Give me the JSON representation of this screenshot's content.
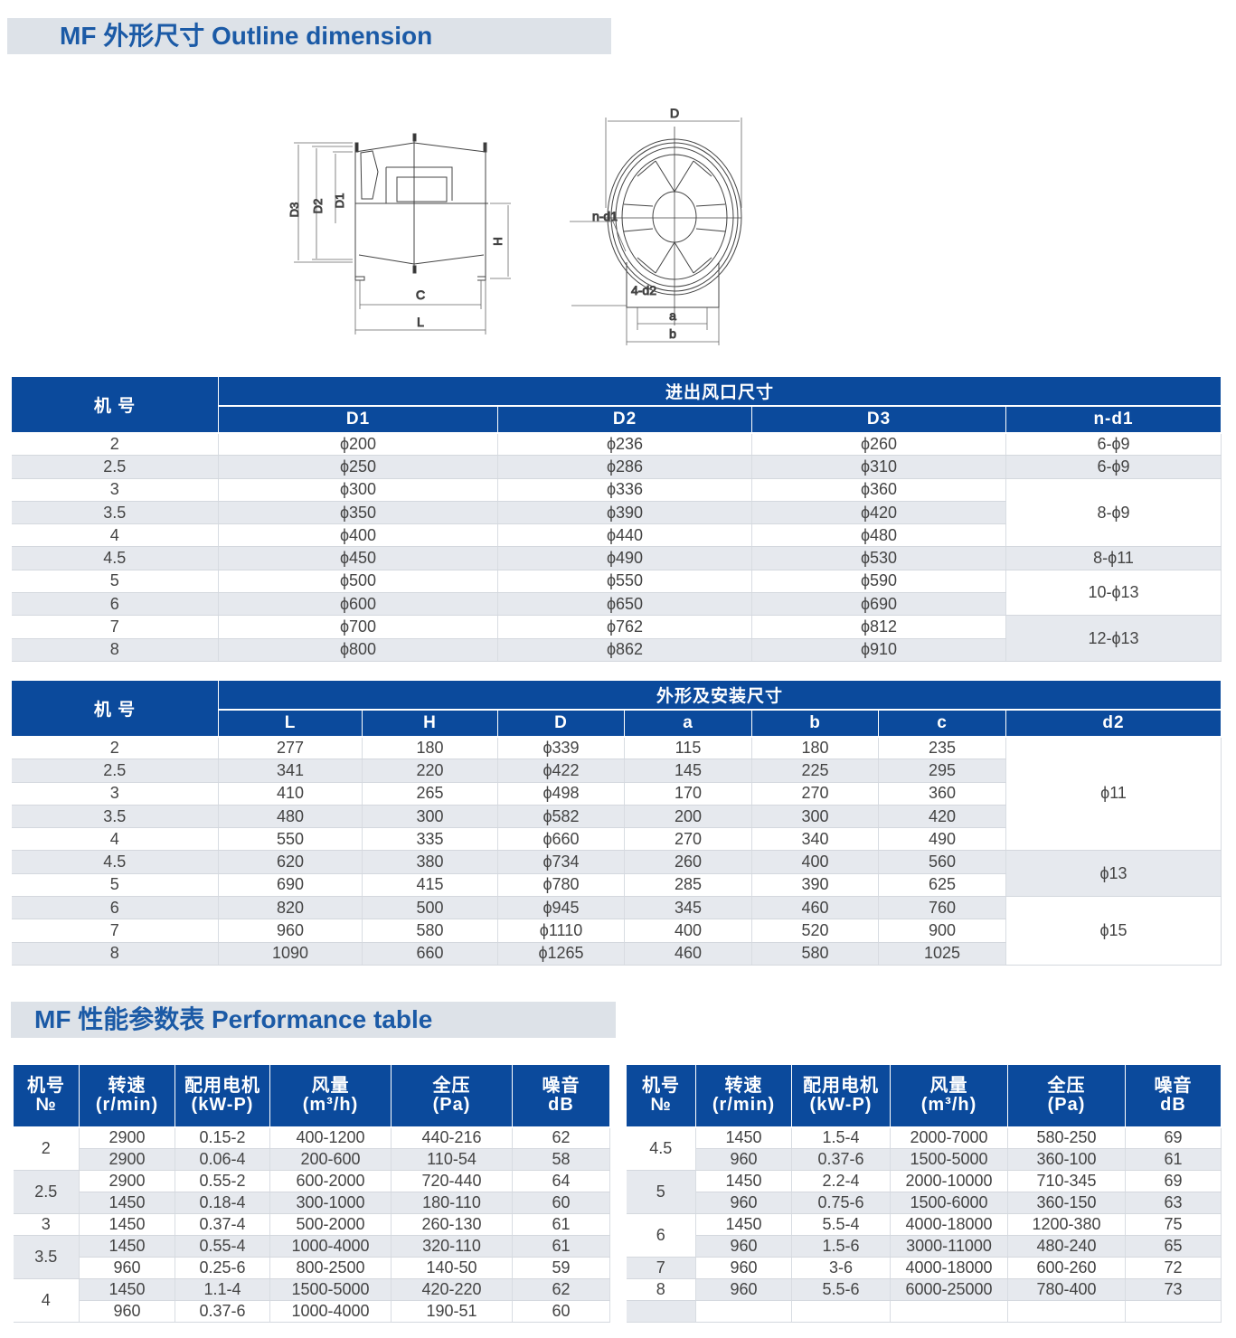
{
  "section1_title": "MF  外形尺寸  Outline dimension",
  "section2_title": "MF 性能参数表  Performance table",
  "drawing": {
    "labels": {
      "D3": "D3",
      "D2": "D2",
      "D1": "D1",
      "H": "H",
      "C": "C",
      "L": "L",
      "D": "D",
      "n_d1": "n-d1",
      "four_d2": "4-d2",
      "a": "a",
      "b": "b"
    }
  },
  "colors": {
    "header": "#0b4a9c",
    "title": "#1b5aa6",
    "stripe": "#e6e9ee",
    "title_bg": "#dde2e8"
  },
  "table_inlet": {
    "machine_header": "机 号",
    "group_header": "进出风口尺寸",
    "columns": [
      "D1",
      "D2",
      "D3",
      "n-d1"
    ],
    "rows": [
      [
        "2",
        "ϕ200",
        "ϕ236",
        "ϕ260",
        {
          "t": "6-ϕ9",
          "span": 1,
          "bg": "w"
        }
      ],
      [
        "2.5",
        "ϕ250",
        "ϕ286",
        "ϕ310",
        {
          "t": "6-ϕ9",
          "span": 1,
          "bg": "g"
        }
      ],
      [
        "3",
        "ϕ300",
        "ϕ336",
        "ϕ360",
        {
          "t": "8-ϕ9",
          "span": 3,
          "bg": "w"
        }
      ],
      [
        "3.5",
        "ϕ350",
        "ϕ390",
        "ϕ420"
      ],
      [
        "4",
        "ϕ400",
        "ϕ440",
        "ϕ480"
      ],
      [
        "4.5",
        "ϕ450",
        "ϕ490",
        "ϕ530",
        {
          "t": "8-ϕ11",
          "span": 1,
          "bg": "g"
        }
      ],
      [
        "5",
        "ϕ500",
        "ϕ550",
        "ϕ590",
        {
          "t": "10-ϕ13",
          "span": 2,
          "bg": "w"
        }
      ],
      [
        "6",
        "ϕ600",
        "ϕ650",
        "ϕ690"
      ],
      [
        "7",
        "ϕ700",
        "ϕ762",
        "ϕ812",
        {
          "t": "12-ϕ13",
          "span": 2,
          "bg": "g"
        }
      ],
      [
        "8",
        "ϕ800",
        "ϕ862",
        "ϕ910"
      ]
    ]
  },
  "table_outline": {
    "machine_header": "机 号",
    "group_header": "外形及安装尺寸",
    "columns": [
      "L",
      "H",
      "D",
      "a",
      "b",
      "c",
      "d2"
    ],
    "rows": [
      [
        "2",
        "277",
        "180",
        "ϕ339",
        "115",
        "180",
        "235",
        {
          "t": "ϕ11",
          "span": 5,
          "bg": "w"
        }
      ],
      [
        "2.5",
        "341",
        "220",
        "ϕ422",
        "145",
        "225",
        "295"
      ],
      [
        "3",
        "410",
        "265",
        "ϕ498",
        "170",
        "270",
        "360"
      ],
      [
        "3.5",
        "480",
        "300",
        "ϕ582",
        "200",
        "300",
        "420"
      ],
      [
        "4",
        "550",
        "335",
        "ϕ660",
        "270",
        "340",
        "490"
      ],
      [
        "4.5",
        "620",
        "380",
        "ϕ734",
        "260",
        "400",
        "560",
        {
          "t": "ϕ13",
          "span": 2,
          "bg": "g"
        }
      ],
      [
        "5",
        "690",
        "415",
        "ϕ780",
        "285",
        "390",
        "625"
      ],
      [
        "6",
        "820",
        "500",
        "ϕ945",
        "345",
        "460",
        "760",
        {
          "t": "ϕ15",
          "span": 3,
          "bg": "w"
        }
      ],
      [
        "7",
        "960",
        "580",
        "ϕ1110",
        "400",
        "520",
        "900"
      ],
      [
        "8",
        "1090",
        "660",
        "ϕ1265",
        "460",
        "580",
        "1025"
      ]
    ]
  },
  "performance": {
    "headers": [
      [
        "机号",
        "№"
      ],
      [
        "转速",
        "(r/min)"
      ],
      [
        "配用电机",
        "(kW-P)"
      ],
      [
        "风量",
        "(m³/h)"
      ],
      [
        "全压",
        "(Pa)"
      ],
      [
        "噪音",
        "dB"
      ]
    ],
    "left": [
      {
        "no": "2",
        "rows": [
          [
            "2900",
            "0.15-2",
            "400-1200",
            "440-216",
            "62"
          ],
          [
            "2900",
            "0.06-4",
            "200-600",
            "110-54",
            "58"
          ]
        ]
      },
      {
        "no": "2.5",
        "rows": [
          [
            "2900",
            "0.55-2",
            "600-2000",
            "720-440",
            "64"
          ],
          [
            "1450",
            "0.18-4",
            "300-1000",
            "180-110",
            "60"
          ]
        ]
      },
      {
        "no": "3",
        "rows": [
          [
            "1450",
            "0.37-4",
            "500-2000",
            "260-130",
            "61"
          ]
        ]
      },
      {
        "no": "3.5",
        "rows": [
          [
            "1450",
            "0.55-4",
            "1000-4000",
            "320-110",
            "61"
          ],
          [
            "960",
            "0.25-6",
            "800-2500",
            "140-50",
            "59"
          ]
        ]
      },
      {
        "no": "4",
        "rows": [
          [
            "1450",
            "1.1-4",
            "1500-5000",
            "420-220",
            "62"
          ],
          [
            "960",
            "0.37-6",
            "1000-4000",
            "190-51",
            "60"
          ]
        ]
      }
    ],
    "right": [
      {
        "no": "4.5",
        "rows": [
          [
            "1450",
            "1.5-4",
            "2000-7000",
            "580-250",
            "69"
          ],
          [
            "960",
            "0.37-6",
            "1500-5000",
            "360-100",
            "61"
          ]
        ]
      },
      {
        "no": "5",
        "rows": [
          [
            "1450",
            "2.2-4",
            "2000-10000",
            "710-345",
            "69"
          ],
          [
            "960",
            "0.75-6",
            "1500-6000",
            "360-150",
            "63"
          ]
        ]
      },
      {
        "no": "6",
        "rows": [
          [
            "1450",
            "5.5-4",
            "4000-18000",
            "1200-380",
            "75"
          ],
          [
            "960",
            "1.5-6",
            "3000-11000",
            "480-240",
            "65"
          ]
        ]
      },
      {
        "no": "7",
        "rows": [
          [
            "960",
            "3-6",
            "4000-18000",
            "600-260",
            "72"
          ]
        ]
      },
      {
        "no": "8",
        "rows": [
          [
            "960",
            "5.5-6",
            "6000-25000",
            "780-400",
            "73"
          ]
        ]
      },
      {
        "no": "",
        "rows": [
          [
            "",
            "",
            "",
            "",
            ""
          ]
        ]
      }
    ]
  }
}
